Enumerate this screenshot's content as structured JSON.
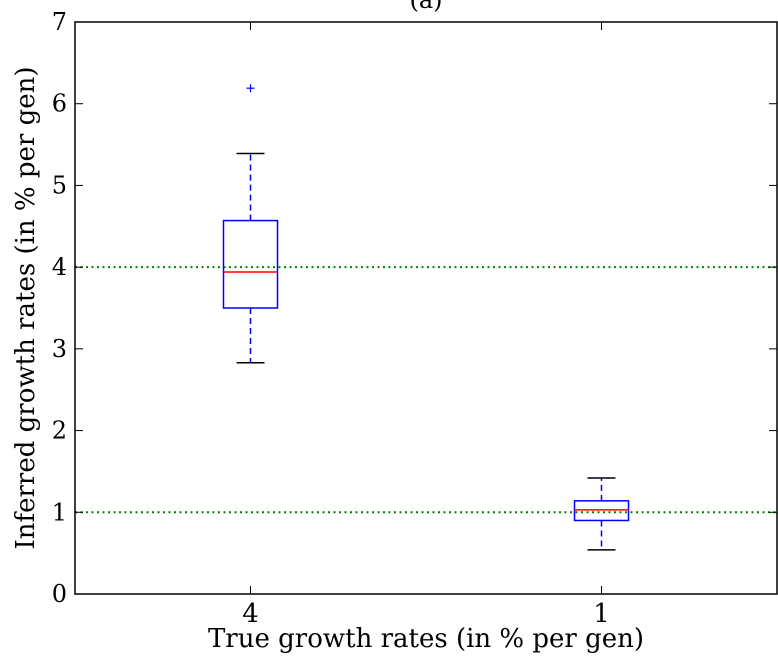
{
  "chart_data": {
    "type": "box",
    "title": "(a)",
    "xlabel": "True growth rates (in % per gen)",
    "ylabel": "Inferred growth rates (in % per gen)",
    "categories": [
      "4",
      "1"
    ],
    "ylim": [
      0,
      7
    ],
    "yticks": [
      "0",
      "1",
      "2",
      "3",
      "4",
      "5",
      "6",
      "7"
    ],
    "boxes": [
      {
        "category": "4",
        "whisker_low": 2.83,
        "q1": 3.5,
        "median": 3.94,
        "q3": 4.57,
        "whisker_high": 5.39,
        "outliers": [
          6.19
        ]
      },
      {
        "category": "1",
        "whisker_low": 0.54,
        "q1": 0.9,
        "median": 1.03,
        "q3": 1.14,
        "whisker_high": 1.42,
        "outliers": []
      }
    ],
    "reference_lines": [
      4,
      1
    ],
    "colors": {
      "box": "#0000ff",
      "median": "#ff0000",
      "whisker_cap": "#000000",
      "reference_line": "#008000",
      "axes": "#000000"
    },
    "grid": false
  }
}
